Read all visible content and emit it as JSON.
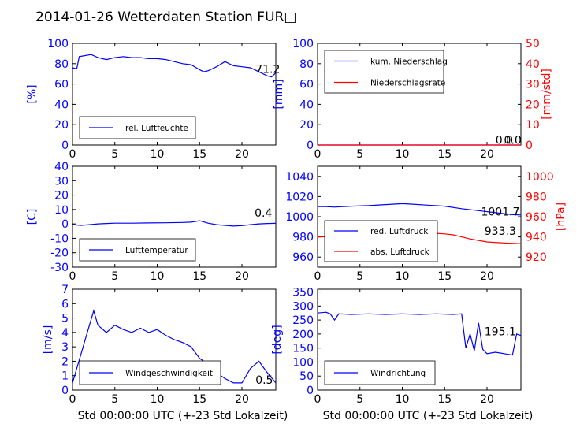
{
  "title": "2014-01-26 Wetterdaten Station FUR□",
  "chart_data": [
    {
      "id": "humidity",
      "type": "line",
      "xlim": [
        0,
        24
      ],
      "x_ticks": [
        0,
        5,
        10,
        15,
        20
      ],
      "ylim": [
        0,
        100
      ],
      "y_ticks": [
        0,
        20,
        40,
        60,
        80,
        100
      ],
      "ylabel": "[%]",
      "series": [
        {
          "name": "rel. Luftfeuchte",
          "color": "#0000ff",
          "points": [
            [
              0,
              76
            ],
            [
              0.5,
              75
            ],
            [
              0.8,
              87
            ],
            [
              1.5,
              88
            ],
            [
              2.2,
              89
            ],
            [
              3,
              86
            ],
            [
              4,
              84
            ],
            [
              5,
              86
            ],
            [
              6,
              87
            ],
            [
              7,
              86
            ],
            [
              8,
              86
            ],
            [
              9,
              85
            ],
            [
              10,
              85
            ],
            [
              11,
              84
            ],
            [
              12,
              82
            ],
            [
              13,
              80
            ],
            [
              14,
              79
            ],
            [
              15,
              74
            ],
            [
              15.5,
              72
            ],
            [
              16,
              73
            ],
            [
              17,
              77
            ],
            [
              18,
              82
            ],
            [
              19,
              78
            ],
            [
              20,
              77
            ],
            [
              21,
              76
            ],
            [
              22,
              72
            ],
            [
              22.5,
              70
            ],
            [
              23,
              68
            ],
            [
              23.5,
              67
            ],
            [
              24,
              71
            ]
          ]
        }
      ],
      "annotations": [
        {
          "text": "71.2",
          "x": 21.6,
          "y": 71
        }
      ]
    },
    {
      "id": "precip",
      "type": "line",
      "xlim": [
        0,
        24
      ],
      "x_ticks": [
        0,
        5,
        10,
        15,
        20
      ],
      "ylim": [
        0,
        100
      ],
      "y_ticks": [
        0,
        20,
        40,
        60,
        80,
        100
      ],
      "ylabel": "[mm]",
      "ylim_right": [
        0,
        50
      ],
      "y_ticks_right": [
        0,
        10,
        20,
        30,
        40,
        50
      ],
      "ylabel_right": "[mm/std]",
      "series": [
        {
          "name": "kum. Niederschlag",
          "color": "#0000ff",
          "points": [
            [
              0,
              0
            ],
            [
              24,
              0
            ]
          ]
        },
        {
          "name": "Niederschlagsrate",
          "color": "#ff0000",
          "axis": "right",
          "points": [
            [
              0,
              0
            ],
            [
              24,
              0
            ]
          ]
        }
      ],
      "annotations": [
        {
          "text": "0.0",
          "x": 21.0,
          "y": 1
        },
        {
          "text": "0.0",
          "x": 22.0,
          "y": 1
        }
      ]
    },
    {
      "id": "temperature",
      "type": "line",
      "xlim": [
        0,
        24
      ],
      "x_ticks": [
        0,
        5,
        10,
        15,
        20
      ],
      "ylim": [
        -30,
        40
      ],
      "y_ticks": [
        -30,
        -20,
        -10,
        0,
        10,
        20,
        30,
        40
      ],
      "ylabel": "[C]",
      "series": [
        {
          "name": "Lufttemperatur",
          "color": "#0000ff",
          "points": [
            [
              0,
              -0.5
            ],
            [
              1,
              -1
            ],
            [
              2,
              -0.5
            ],
            [
              3,
              0
            ],
            [
              4,
              0.3
            ],
            [
              5,
              0.5
            ],
            [
              7,
              0.5
            ],
            [
              9,
              0.7
            ],
            [
              11,
              0.8
            ],
            [
              13,
              1
            ],
            [
              14,
              1.2
            ],
            [
              15,
              2.2
            ],
            [
              16,
              0.5
            ],
            [
              17,
              -0.5
            ],
            [
              18,
              -1
            ],
            [
              19,
              -1.5
            ],
            [
              20,
              -1.2
            ],
            [
              21,
              -0.5
            ],
            [
              22,
              0
            ],
            [
              23,
              0.3
            ],
            [
              24,
              0.4
            ]
          ]
        }
      ],
      "annotations": [
        {
          "text": "0.4",
          "x": 21.5,
          "y": 5
        }
      ]
    },
    {
      "id": "pressure",
      "type": "line",
      "xlim": [
        0,
        24
      ],
      "x_ticks": [
        0,
        5,
        10,
        15,
        20
      ],
      "ylim": [
        950,
        1050
      ],
      "y_ticks": [
        960,
        980,
        1000,
        1020,
        1040
      ],
      "ylim_right": [
        910,
        1010
      ],
      "y_ticks_right": [
        920,
        940,
        960,
        980,
        1000
      ],
      "ylabel_right": "[hPa]",
      "series": [
        {
          "name": "red. Luftdruck",
          "color": "#0000ff",
          "points": [
            [
              0,
              1010
            ],
            [
              1,
              1010
            ],
            [
              2,
              1009.5
            ],
            [
              3,
              1010
            ],
            [
              4,
              1010.5
            ],
            [
              6,
              1011
            ],
            [
              8,
              1012
            ],
            [
              10,
              1013
            ],
            [
              11,
              1012.5
            ],
            [
              13,
              1011.5
            ],
            [
              15,
              1010.5
            ],
            [
              17,
              1008
            ],
            [
              19,
              1006
            ],
            [
              21,
              1004
            ],
            [
              23,
              1002
            ],
            [
              24,
              1001.7
            ]
          ]
        },
        {
          "name": "abs. Luftdruck",
          "color": "#ff0000",
          "axis": "right",
          "points": [
            [
              0,
              940
            ],
            [
              2,
              940.5
            ],
            [
              4,
              941
            ],
            [
              6,
              942
            ],
            [
              8,
              942.5
            ],
            [
              10,
              943
            ],
            [
              12,
              943.5
            ],
            [
              14,
              943.5
            ],
            [
              15,
              943
            ],
            [
              16,
              942
            ],
            [
              17,
              940
            ],
            [
              18,
              938
            ],
            [
              19,
              936.5
            ],
            [
              20,
              935
            ],
            [
              22,
              934
            ],
            [
              24,
              933.3
            ]
          ]
        }
      ],
      "annotations": [
        {
          "text": "1001.7",
          "x": 19.3,
          "y": 1001
        },
        {
          "text": "933.3",
          "x": 19.7,
          "y": 982
        }
      ]
    },
    {
      "id": "windspeed",
      "type": "line",
      "xlim": [
        0,
        24
      ],
      "x_ticks": [
        0,
        5,
        10,
        15,
        20
      ],
      "ylim": [
        0,
        7
      ],
      "y_ticks": [
        0,
        1,
        2,
        3,
        4,
        5,
        6,
        7
      ],
      "ylabel": "[m/s]",
      "xlabel": "Std 00:00:00 UTC (+-23 Std Lokalzeit)",
      "series": [
        {
          "name": "Windgeschwindigkeit",
          "color": "#0000ff",
          "points": [
            [
              0,
              0.5
            ],
            [
              0.5,
              1.5
            ],
            [
              1,
              2.5
            ],
            [
              1.5,
              3.5
            ],
            [
              2,
              4.5
            ],
            [
              2.5,
              5.5
            ],
            [
              3,
              4.5
            ],
            [
              4,
              4
            ],
            [
              5,
              4.5
            ],
            [
              6,
              4.2
            ],
            [
              7,
              4
            ],
            [
              8,
              4.3
            ],
            [
              9,
              4
            ],
            [
              10,
              4.2
            ],
            [
              11,
              3.8
            ],
            [
              12,
              3.5
            ],
            [
              13,
              3.3
            ],
            [
              14,
              3
            ],
            [
              15,
              2.2
            ],
            [
              16,
              1.8
            ],
            [
              17,
              1.2
            ],
            [
              18,
              0.8
            ],
            [
              19,
              0.5
            ],
            [
              20,
              0.5
            ],
            [
              21,
              1.5
            ],
            [
              22,
              2
            ],
            [
              23,
              1.2
            ],
            [
              24,
              0.5
            ]
          ]
        }
      ],
      "annotations": [
        {
          "text": "0.5",
          "x": 21.6,
          "y": 0.45
        }
      ]
    },
    {
      "id": "winddir",
      "type": "line",
      "xlim": [
        0,
        24
      ],
      "x_ticks": [
        0,
        5,
        10,
        15,
        20
      ],
      "ylim": [
        0,
        360
      ],
      "y_ticks": [
        0,
        50,
        100,
        150,
        200,
        250,
        300,
        350
      ],
      "ylabel": "[deg]",
      "xlabel": "Std 00:00:00 UTC (+-23 Std Lokalzeit)",
      "series": [
        {
          "name": "Windrichtung",
          "color": "#0000ff",
          "points": [
            [
              0,
              275
            ],
            [
              1,
              278
            ],
            [
              1.5,
              272
            ],
            [
              2,
              250
            ],
            [
              2.5,
              272
            ],
            [
              4,
              270
            ],
            [
              6,
              272
            ],
            [
              8,
              270
            ],
            [
              10,
              272
            ],
            [
              12,
              270
            ],
            [
              14,
              272
            ],
            [
              16,
              270
            ],
            [
              17,
              272
            ],
            [
              17.5,
              150
            ],
            [
              18,
              200
            ],
            [
              18.5,
              140
            ],
            [
              19,
              240
            ],
            [
              19.5,
              145
            ],
            [
              20,
              130
            ],
            [
              21,
              135
            ],
            [
              22,
              130
            ],
            [
              23,
              125
            ],
            [
              23.5,
              200
            ],
            [
              24,
              195
            ]
          ]
        }
      ],
      "annotations": [
        {
          "text": "195.1",
          "x": 19.7,
          "y": 195
        }
      ]
    }
  ],
  "colors": {
    "primary_axis": "#0000ff",
    "secondary_axis": "#ff0000",
    "frame": "#000000"
  }
}
